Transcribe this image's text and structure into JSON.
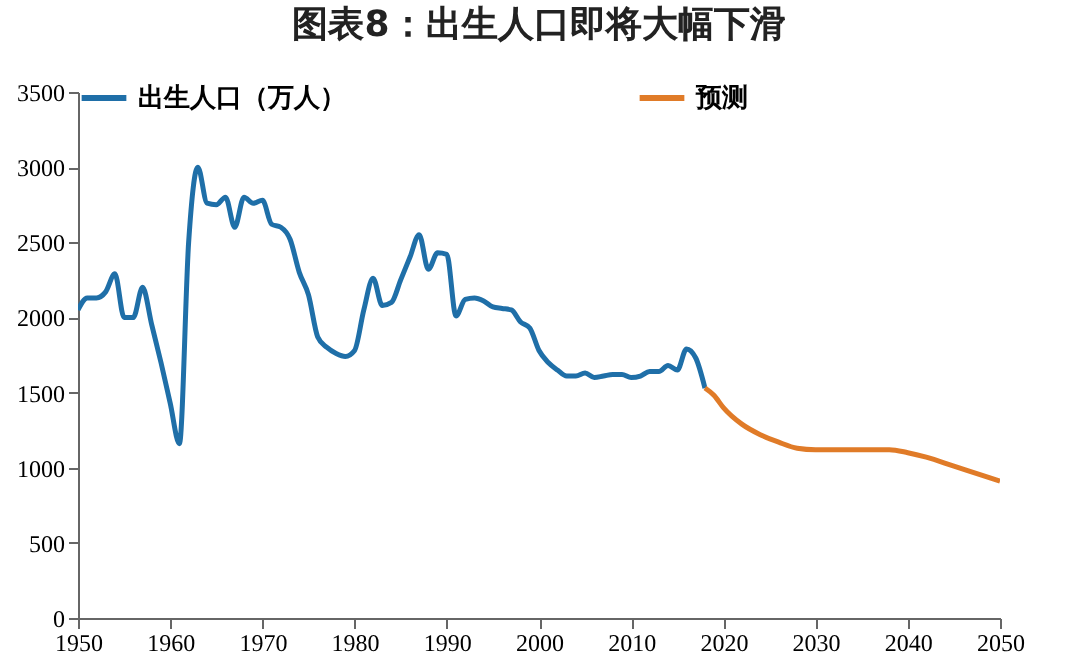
{
  "chart_data": {
    "type": "line",
    "title": "图表8：出生人口即将大幅下滑",
    "xlim": [
      1950,
      2050
    ],
    "xticks": [
      1950,
      1960,
      1970,
      1980,
      1990,
      2000,
      2010,
      2020,
      2030,
      2040,
      2050
    ],
    "ylim": [
      0,
      3500
    ],
    "yticks": [
      0,
      500,
      1000,
      1500,
      2000,
      2500,
      3000,
      3500
    ],
    "grid": false,
    "legend": "top",
    "line_style": "solid",
    "marker": "none",
    "series": [
      {
        "name": "出生人口（万人）",
        "color": "#1f6fa8",
        "x": [
          1950,
          1951,
          1952,
          1953,
          1954,
          1955,
          1956,
          1957,
          1958,
          1959,
          1960,
          1961,
          1962,
          1963,
          1964,
          1965,
          1966,
          1967,
          1968,
          1969,
          1970,
          1971,
          1972,
          1973,
          1974,
          1975,
          1976,
          1977,
          1978,
          1979,
          1980,
          1981,
          1982,
          1983,
          1984,
          1985,
          1986,
          1987,
          1988,
          1989,
          1990,
          1991,
          1992,
          1993,
          1994,
          1995,
          1996,
          1997,
          1998,
          1999,
          2000,
          2001,
          2002,
          2003,
          2004,
          2005,
          2006,
          2007,
          2008,
          2009,
          2010,
          2011,
          2012,
          2013,
          2014,
          2015,
          2016,
          2017,
          2018
        ],
        "values": [
          2050,
          2130,
          2130,
          2170,
          2290,
          2000,
          2000,
          2200,
          1950,
          1700,
          1430,
          1160,
          2500,
          3000,
          2760,
          2750,
          2800,
          2600,
          2800,
          2760,
          2780,
          2620,
          2600,
          2520,
          2300,
          2150,
          1870,
          1800,
          1760,
          1740,
          1780,
          2050,
          2260,
          2080,
          2100,
          2250,
          2400,
          2550,
          2320,
          2430,
          2420,
          2010,
          2120,
          2130,
          2110,
          2070,
          2060,
          2050,
          1970,
          1930,
          1780,
          1700,
          1650,
          1610,
          1610,
          1630,
          1600,
          1610,
          1620,
          1620,
          1600,
          1610,
          1640,
          1640,
          1680,
          1650,
          1790,
          1730,
          1530
        ]
      },
      {
        "name": "预测",
        "color": "#e07b28",
        "x": [
          2018,
          2019,
          2020,
          2022,
          2024,
          2026,
          2028,
          2030,
          2035,
          2038,
          2040,
          2042,
          2045,
          2048,
          2050
        ],
        "values": [
          1530,
          1480,
          1400,
          1290,
          1220,
          1170,
          1130,
          1120,
          1120,
          1120,
          1100,
          1070,
          1010,
          950,
          910
        ]
      }
    ]
  }
}
